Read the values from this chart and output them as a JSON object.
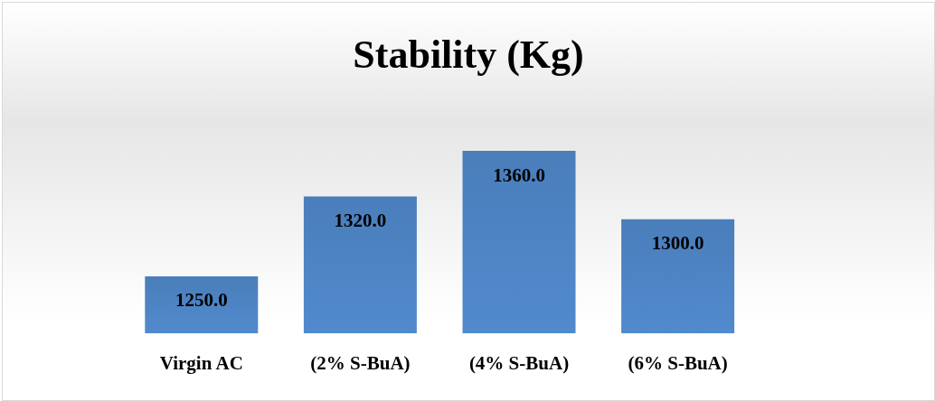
{
  "chart_data": {
    "type": "bar",
    "title": "Stability (Kg)",
    "categories": [
      "Virgin AC",
      "(2% S-BuA)",
      "(4% S-BuA)",
      "(6% S-BuA)",
      null
    ],
    "values": [
      1250,
      1320,
      1360,
      1300,
      null
    ],
    "value_labels": [
      "1250.0",
      "1320.0",
      "1360.0",
      "1300.0",
      null
    ],
    "color": "#4a7ebb",
    "ylim": [
      1200,
      1360
    ],
    "tick_labels": "x"
  }
}
